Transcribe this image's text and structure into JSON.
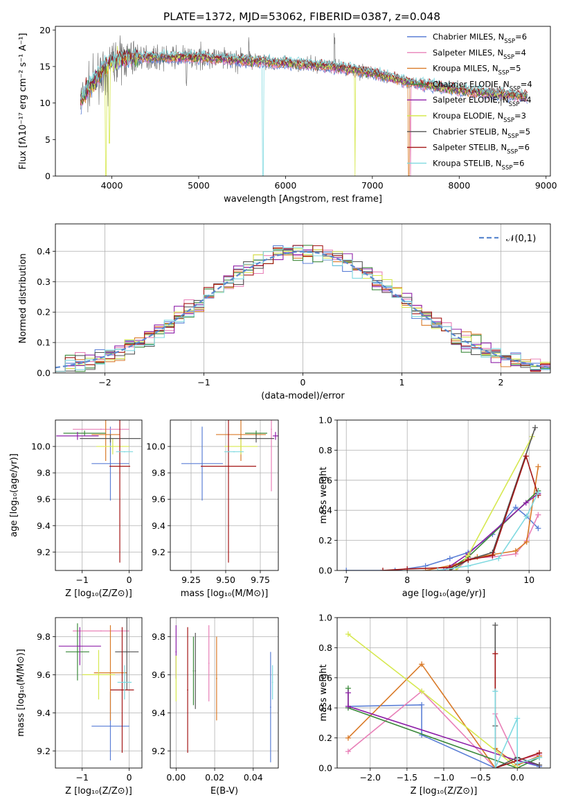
{
  "title": "PLATE=1372, MJD=53062, FIBERID=0387, z=0.048",
  "colors": [
    "#5b7fd6",
    "#e880b8",
    "#d97a28",
    "#3c8a3c",
    "#8e1fa8",
    "#d6e84f",
    "#555555",
    "#a31515",
    "#7fd9e0"
  ],
  "legend": [
    "Chabrier MILES, N_SSP=6",
    "Salpeter MILES, N_SSP=4",
    "Kroupa MILES, N_SSP=5",
    "Chabrier ELODIE, N_SSP=4",
    "Salpeter ELODIE, N_SSP=4",
    "Kroupa ELODIE, N_SSP=3",
    "Chabrier STELIB, N_SSP=5",
    "Salpeter STELIB, N_SSP=6",
    "Kroupa STELIB, N_SSP=6"
  ],
  "labels": {
    "spec_x": "wavelength [Angstrom, rest frame]",
    "spec_y": "Flux [fλ10⁻¹⁷ erg cm⁻² s⁻¹ A⁻¹]",
    "hist_x": "(data-model)/error",
    "hist_y": "Normed distribution",
    "hist_legend": "𝒩(0,1)",
    "age_y": "age  [log₁₀(age/yr)]",
    "z_x": "Z [log₁₀(Z/Z⊙)]",
    "mass_x": "mass [log₁₀(M/M⊙)]",
    "mw_y": "mass weight",
    "age_x": "age  [log₁₀(age/yr)]",
    "mass_y": "mass [log₁₀(M/M⊙)]",
    "ebv_x": "E(B-V)"
  },
  "chart_data": [
    {
      "type": "line",
      "panel": "spectrum",
      "title": "PLATE=1372, MJD=53062, FIBERID=0387, z=0.048",
      "xlabel": "wavelength [Angstrom, rest frame]",
      "ylabel": "Flux [fλ10⁻¹⁷ erg cm⁻² s⁻¹ A⁻¹]",
      "xlim": [
        3350,
        9050
      ],
      "ylim": [
        0,
        20.5
      ],
      "xticks": [
        4000,
        5000,
        6000,
        7000,
        8000,
        9000
      ],
      "yticks": [
        0,
        5,
        10,
        15,
        20
      ],
      "data_wavelength_range": [
        3640,
        8790
      ],
      "continuum": {
        "x": [
          3640,
          3800,
          3950,
          4100,
          4300,
          4600,
          5000,
          5400,
          5800,
          6200,
          6600,
          7000,
          7400,
          7600,
          8000,
          8400,
          8790
        ],
        "y": [
          10.5,
          13.0,
          15.5,
          16.0,
          16.3,
          16.2,
          16.3,
          15.9,
          15.6,
          15.3,
          14.9,
          14.1,
          12.9,
          12.5,
          11.8,
          11.3,
          10.9
        ]
      },
      "legend_loc": "upper right",
      "grid": false
    },
    {
      "type": "bar",
      "panel": "residual histogram (step)",
      "xlabel": "(data-model)/error",
      "ylabel": "Normed distribution",
      "xlim": [
        -2.5,
        2.5
      ],
      "ylim": [
        0,
        0.49
      ],
      "xticks": [
        -2,
        -1,
        0,
        1,
        2
      ],
      "yticks": [
        0.0,
        0.1,
        0.2,
        0.3,
        0.4
      ],
      "bin_width": 0.1,
      "reference": {
        "name": "𝒩(0,1)",
        "mean": 0,
        "sigma": 1
      },
      "grid": true
    },
    {
      "type": "scatter",
      "panel": "age vs Z (error bars)",
      "xlabel": "Z [log₁₀(Z/Z⊙)]",
      "ylabel": "age  [log₁₀(age/yr)]",
      "xlim": [
        -1.57,
        0.27
      ],
      "ylim": [
        9.06,
        10.2
      ],
      "xticks": [
        -1,
        0
      ],
      "yticks": [
        9.2,
        9.4,
        9.6,
        9.8,
        10.0
      ],
      "points": [
        {
          "x": -0.4,
          "xerr": 0.4,
          "y": 9.87,
          "yerr": 0.28
        },
        {
          "x": -0.6,
          "xerr": 0.6,
          "y": 10.13,
          "yerr": 0.0
        },
        {
          "x": -0.5,
          "xerr": 0.3,
          "y": 10.09,
          "yerr": 0.2
        },
        {
          "x": -0.95,
          "xerr": 0.45,
          "y": 10.1,
          "yerr": 0.02
        },
        {
          "x": -1.1,
          "xerr": 0.45,
          "y": 10.08,
          "yerr": 0.03
        },
        {
          "x": -0.35,
          "xerr": 0.35,
          "y": 10.0,
          "yerr": 0.06
        },
        {
          "x": -0.4,
          "xerr": 0.65,
          "y": 10.06,
          "yerr": 0.03
        },
        {
          "x": -0.2,
          "xerr": 0.22,
          "y": 9.85,
          "yerr": 0.73
        },
        {
          "x": -0.1,
          "xerr": 0.18,
          "y": 9.96,
          "yerr": 0.0
        }
      ],
      "grid": true
    },
    {
      "type": "scatter",
      "panel": "age vs mass (error bars)",
      "xlabel": "mass [log₁₀(M/M⊙)]",
      "ylabel": "",
      "xlim": [
        9.1,
        9.88
      ],
      "ylim": [
        9.06,
        10.2
      ],
      "xticks": [
        9.25,
        9.5,
        9.75
      ],
      "yticks": [
        9.2,
        9.4,
        9.6,
        9.8,
        10.0
      ],
      "points": [
        {
          "x": 9.33,
          "xerr": 0.15,
          "y": 9.87,
          "yerr": 0.28
        },
        {
          "x": 9.83,
          "xerr": 0.0,
          "y": 10.13,
          "yerr": 0.47
        },
        {
          "x": 9.61,
          "xerr": 0.18,
          "y": 10.09,
          "yerr": 0.2
        },
        {
          "x": 9.72,
          "xerr": 0.08,
          "y": 10.1,
          "yerr": 0.02
        },
        {
          "x": 9.86,
          "xerr": 0.02,
          "y": 10.08,
          "yerr": 0.03
        },
        {
          "x": 9.61,
          "xerr": 0.12,
          "y": 10.0,
          "yerr": 0.06
        },
        {
          "x": 9.72,
          "xerr": 0.13,
          "y": 10.06,
          "yerr": 0.03
        },
        {
          "x": 9.52,
          "xerr": 0.2,
          "y": 9.85,
          "yerr": 0.73
        },
        {
          "x": 9.56,
          "xerr": 0.07,
          "y": 9.96,
          "yerr": 0.0
        }
      ],
      "grid": true
    },
    {
      "type": "line",
      "panel": "mass weight vs age",
      "xlabel": "age  [log₁₀(age/yr)]",
      "ylabel": "mass weight",
      "xlim": [
        6.85,
        10.35
      ],
      "ylim": [
        0,
        1.0
      ],
      "xticks": [
        7,
        8,
        9,
        10
      ],
      "yticks": [
        0.0,
        0.2,
        0.4,
        0.6,
        0.8,
        1.0
      ],
      "series": [
        {
          "x": [
            7.0,
            7.8,
            8.3,
            8.7,
            9.0,
            9.4,
            9.78,
            9.96,
            10.15
          ],
          "y": [
            0.0,
            0.0,
            0.03,
            0.08,
            0.12,
            0.24,
            0.42,
            0.36,
            0.28
          ]
        },
        {
          "x": [
            8.8,
            9.0,
            9.4,
            9.78,
            9.96,
            10.15
          ],
          "y": [
            0.0,
            0.08,
            0.09,
            0.11,
            0.2,
            0.37
          ]
        },
        {
          "x": [
            8.3,
            8.8,
            9.15,
            9.78,
            9.96,
            10.15
          ],
          "y": [
            0.0,
            0.04,
            0.09,
            0.13,
            0.19,
            0.69
          ]
        },
        {
          "x": [
            8.7,
            9.0,
            10.15
          ],
          "y": [
            0.01,
            0.09,
            0.53
          ]
        },
        {
          "x": [
            8.6,
            9.0,
            9.95,
            10.15
          ],
          "y": [
            0.0,
            0.11,
            0.45,
            0.51
          ]
        },
        {
          "x": [
            8.8,
            9.0,
            10.05
          ],
          "y": [
            0.0,
            0.1,
            0.89
          ]
        },
        {
          "x": [
            8.7,
            9.0,
            9.4,
            10.1
          ],
          "y": [
            0.0,
            0.07,
            0.12,
            0.95
          ]
        },
        {
          "x": [
            7.6,
            8.0,
            8.7,
            9.0,
            9.4,
            9.95,
            10.15
          ],
          "y": [
            0.0,
            0.01,
            0.02,
            0.07,
            0.1,
            0.76,
            0.5
          ]
        },
        {
          "x": [
            8.5,
            9.0,
            9.5,
            9.96,
            10.15
          ],
          "y": [
            0.0,
            0.03,
            0.08,
            0.36,
            0.52
          ]
        }
      ],
      "grid": true
    },
    {
      "type": "scatter",
      "panel": "mass vs Z (error bars)",
      "xlabel": "Z [log₁₀(Z/Z⊙)]",
      "ylabel": "mass [log₁₀(M/M⊙)]",
      "xlim": [
        -1.57,
        0.27
      ],
      "ylim": [
        9.11,
        9.9
      ],
      "xticks": [
        -1,
        0
      ],
      "yticks": [
        9.2,
        9.4,
        9.6,
        9.8
      ],
      "points": [
        {
          "x": -0.4,
          "xerr": 0.4,
          "y": 9.33,
          "yerr": 0.18
        },
        {
          "x": -0.6,
          "xerr": 0.6,
          "y": 9.83,
          "yerr": 0.0
        },
        {
          "x": -0.4,
          "xerr": 0.35,
          "y": 9.61,
          "yerr": 0.25
        },
        {
          "x": -1.1,
          "xerr": 0.25,
          "y": 9.72,
          "yerr": 0.15
        },
        {
          "x": -1.05,
          "xerr": 0.45,
          "y": 9.75,
          "yerr": 0.1
        },
        {
          "x": -0.65,
          "xerr": 0.35,
          "y": 9.6,
          "yerr": 0.13
        },
        {
          "x": -0.05,
          "xerr": 0.25,
          "y": 9.72,
          "yerr": 0.2
        },
        {
          "x": -0.15,
          "xerr": 0.25,
          "y": 9.52,
          "yerr": 0.33
        },
        {
          "x": -0.1,
          "xerr": 0.15,
          "y": 9.56,
          "yerr": 0.09
        }
      ],
      "grid": true
    },
    {
      "type": "scatter",
      "panel": "mass vs E(B-V) (error bars)",
      "xlabel": "E(B-V)",
      "ylabel": "",
      "xlim": [
        -0.003,
        0.053
      ],
      "ylim": [
        9.11,
        9.9
      ],
      "xticks": [
        0.0,
        0.02,
        0.04
      ],
      "yticks": [
        9.2,
        9.4,
        9.6,
        9.8
      ],
      "points": [
        {
          "x": 0.049,
          "y": 9.43,
          "yerr": 0.29
        },
        {
          "x": 0.017,
          "y": 9.66,
          "yerr": 0.2
        },
        {
          "x": 0.021,
          "y": 9.58,
          "yerr": 0.22
        },
        {
          "x": 0.009,
          "y": 9.62,
          "yerr": 0.18
        },
        {
          "x": 0.0,
          "y": 9.72,
          "yerr": 0.14
        },
        {
          "x": 0.0,
          "y": 9.58,
          "yerr": 0.12
        },
        {
          "x": 0.01,
          "y": 9.62,
          "yerr": 0.2
        },
        {
          "x": 0.006,
          "y": 9.52,
          "yerr": 0.33
        },
        {
          "x": 0.05,
          "y": 9.56,
          "yerr": 0.09
        }
      ],
      "grid": true
    },
    {
      "type": "line",
      "panel": "mass weight vs Z",
      "xlabel": "Z [log₁₀(Z/Z⊙)]",
      "ylabel": "mass weight",
      "xlim": [
        -2.45,
        0.45
      ],
      "ylim": [
        0,
        1.0
      ],
      "xticks": [
        -2.0,
        -1.5,
        -1.0,
        -0.5,
        0.0
      ],
      "yticks": [
        0.0,
        0.2,
        0.4,
        0.6,
        0.8,
        1.0
      ],
      "series": [
        {
          "x": [
            -2.3,
            -1.3,
            -1.3,
            -0.3,
            0.0,
            0.3
          ],
          "y": [
            0.41,
            0.42,
            0.22,
            0.0,
            0.05,
            0.01
          ]
        },
        {
          "x": [
            -2.3,
            -1.3,
            -0.3,
            -0.3,
            0.0,
            0.3
          ],
          "y": [
            0.11,
            0.51,
            0.0,
            0.36,
            0.05,
            0.09
          ]
        },
        {
          "x": [
            -2.3,
            -1.3,
            -0.3,
            -0.3,
            0.0,
            0.3
          ],
          "y": [
            0.2,
            0.69,
            0.0,
            0.13,
            0.02,
            0.08
          ]
        },
        {
          "x": [
            -2.3,
            -2.3,
            0.0,
            0.3
          ],
          "y": [
            0.53,
            0.4,
            0.0,
            0.07
          ]
        },
        {
          "x": [
            -2.3,
            -2.3,
            0.0,
            0.3
          ],
          "y": [
            0.5,
            0.41,
            0.05,
            0.02
          ]
        },
        {
          "x": [
            -2.3,
            -1.3,
            0.0
          ],
          "y": [
            0.89,
            0.51,
            0.0
          ]
        },
        {
          "x": [
            -0.3,
            -0.3,
            -0.3,
            0.0,
            0.3
          ],
          "y": [
            0.95,
            0.28,
            0.0,
            0.07,
            0.02
          ]
        },
        {
          "x": [
            -0.3,
            -0.3,
            0.0,
            0.3
          ],
          "y": [
            0.76,
            0.0,
            0.05,
            0.1
          ]
        },
        {
          "x": [
            -0.3,
            -0.3,
            0.0,
            0.0,
            0.3
          ],
          "y": [
            0.51,
            0.0,
            0.33,
            0.03,
            0.07
          ]
        }
      ],
      "grid": true
    }
  ]
}
